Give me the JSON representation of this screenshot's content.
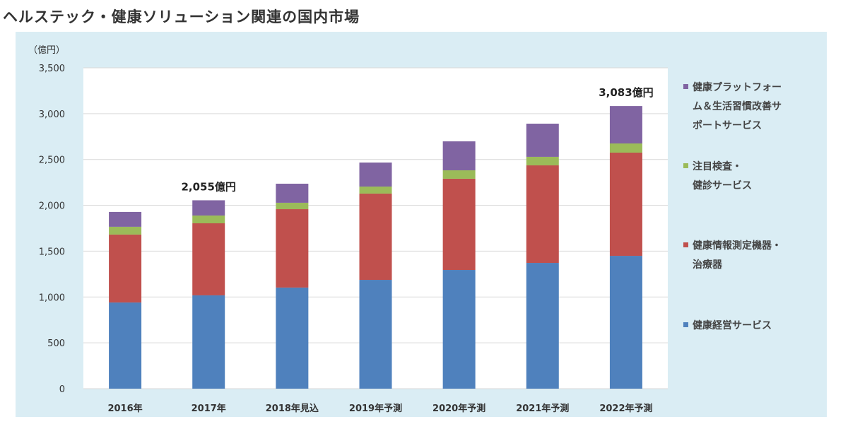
{
  "title": "ヘルステック・健康ソリューション関連の国内市場",
  "chart_data": {
    "type": "bar",
    "stacked": true,
    "title": "ヘルステック・健康ソリューション関連の国内市場",
    "ylabel": "（億円）",
    "xlabel": "",
    "ylim": [
      0,
      3500
    ],
    "yticks": [
      0,
      500,
      1000,
      1500,
      2000,
      2500,
      3000,
      3500
    ],
    "ytick_labels": [
      "0",
      "500",
      "1,000",
      "1,500",
      "2,000",
      "2,500",
      "3,000",
      "3,500"
    ],
    "grid": true,
    "legend_position": "right",
    "categories": [
      "2016年",
      "2017年",
      "2018年見込",
      "2019年予測",
      "2020年予測",
      "2021年予測",
      "2022年予測"
    ],
    "series": [
      {
        "name": "健康経営サービス",
        "color": "#4f81bd",
        "values": [
          940,
          1018,
          1103,
          1187,
          1295,
          1372,
          1449
        ]
      },
      {
        "name": "健康情報測定機器・治療器",
        "color": "#c0504d",
        "values": [
          741,
          786,
          855,
          941,
          995,
          1064,
          1126
        ]
      },
      {
        "name": "注目検査・健診サービス",
        "color": "#9bbb59",
        "values": [
          85,
          85,
          70,
          77,
          92,
          93,
          100
        ]
      },
      {
        "name": "健康プラットフォーム＆生活習慣改善サポートサービス",
        "color": "#8064a2",
        "values": [
          162,
          166,
          208,
          262,
          316,
          362,
          408
        ]
      }
    ],
    "legend_lines": [
      [
        "健康プラットフォー",
        "ム＆生活習慣改善サ",
        "ポートサービス"
      ],
      [
        "注目検査・",
        "健診サービス"
      ],
      [
        "健康情報測定機器・",
        "治療器"
      ],
      [
        "健康経営サービス"
      ]
    ],
    "annotations": [
      {
        "category": "2017年",
        "text": "2,055億円"
      },
      {
        "category": "2022年予測",
        "text": "3,083億円"
      }
    ]
  }
}
